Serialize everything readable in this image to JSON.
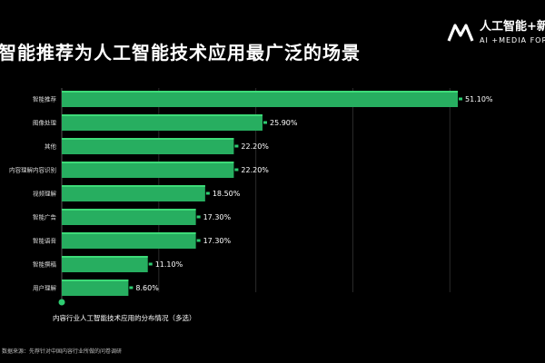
{
  "header": {
    "title": "智能推荐为人工智能技术应用最广泛的场景",
    "brand_cn": "人工智能+新内",
    "brand_en": "AI +MEDIA FORU",
    "brand_logo": "ma-monogram-logo"
  },
  "chart_data": {
    "type": "bar",
    "orientation": "horizontal",
    "title": "智能推荐为人工智能技术应用最广泛的场景",
    "categories": [
      "智能推荐",
      "图像处理",
      "其他",
      "内容理解内容识别",
      "视频理解",
      "智能广告",
      "智能语音",
      "智能撰稿",
      "用户理解"
    ],
    "values": [
      51.1,
      25.9,
      22.2,
      22.2,
      18.5,
      17.3,
      17.3,
      11.1,
      8.6
    ],
    "value_labels": [
      "51.10%",
      "25.90%",
      "22.20%",
      "22.20%",
      "18.50%",
      "17.30%",
      "17.30%",
      "11.10%",
      "8.60%"
    ],
    "xlim": [
      0,
      51.1
    ],
    "xlabel": "",
    "ylabel": "",
    "legend": [
      "内容行业人工智能技术应用的分布情况（多选）"
    ],
    "legend_position": "bottom-left",
    "grid": true,
    "colors": {
      "bar": "#27ae60",
      "bar_highlight": "#3ddb78",
      "marker": "#2ecc71",
      "grid": "#2a2a2a"
    }
  },
  "footnote": "数据来源：先荐针对中国内容行业所做的问卷调研"
}
